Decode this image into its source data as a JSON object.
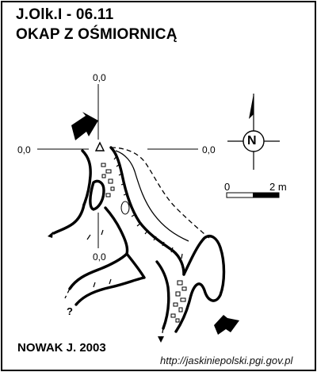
{
  "header": {
    "code": "J.Olk.I - 06.11",
    "name": "OKAP Z OŚMIORNICĄ"
  },
  "grid_labels": {
    "top": "0,0",
    "left": "0,0",
    "right": "0,0",
    "bottom": "0,0"
  },
  "north_arrow": {
    "letter": "N"
  },
  "scale_bar": {
    "start": "0",
    "end": "2 m"
  },
  "annotations": {
    "unknown_passage": "?"
  },
  "footer": {
    "author": "NOWAK J.  2003",
    "url": "http://jaskiniepolski.pgi.gov.pl"
  }
}
